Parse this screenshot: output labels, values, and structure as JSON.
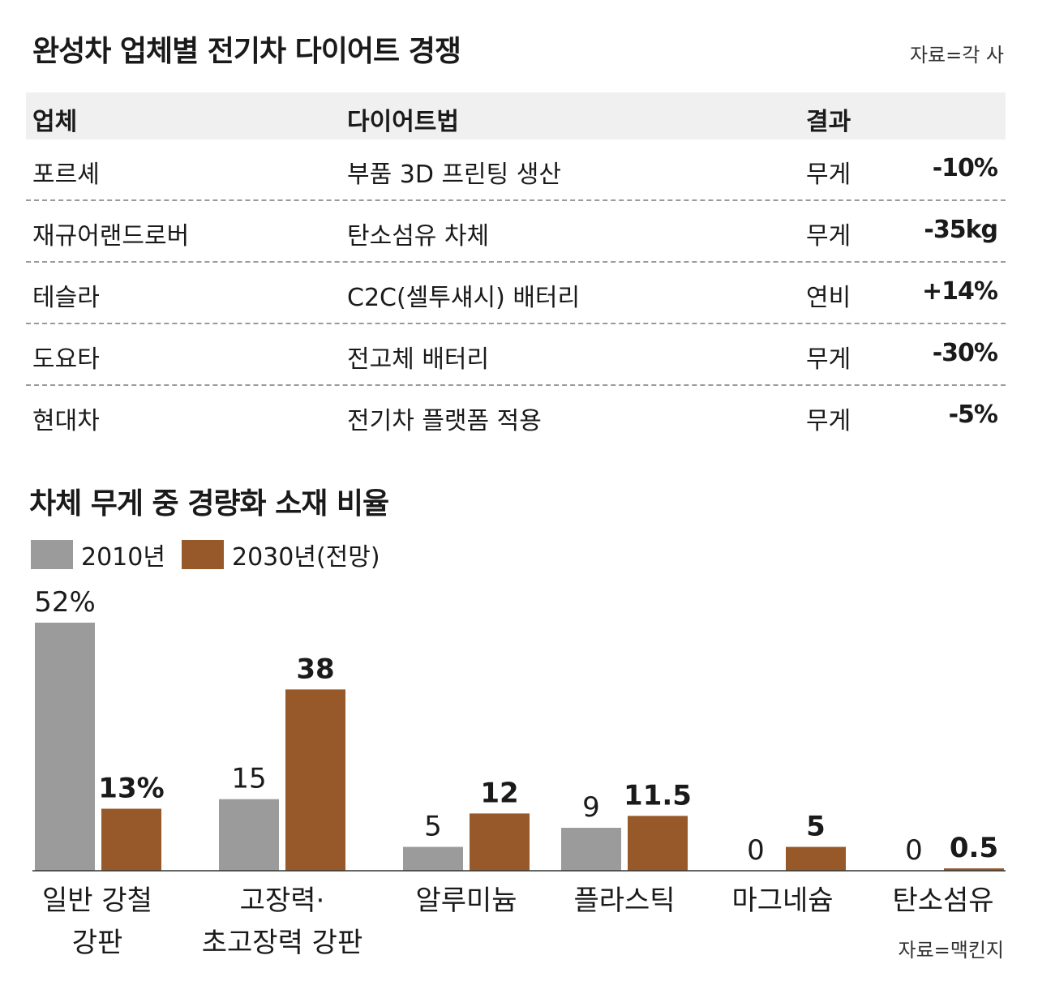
{
  "title": "완성차 업체별 전기차 다이어트 경쟁",
  "source_top": "자료=각 사",
  "table": {
    "headers": [
      "업체",
      "다이어트법",
      "결과"
    ],
    "rows": [
      {
        "company": "포르셰",
        "method": "부품 3D 프린팅 생산",
        "metric": "무게",
        "value": "-10%"
      },
      {
        "company": "재규어랜드로버",
        "method": "탄소섬유 차체",
        "metric": "무게",
        "value": "-35kg"
      },
      {
        "company": "테슬라",
        "method": "C2C(셀투섀시) 배터리",
        "metric": "연비",
        "value": "+14%"
      },
      {
        "company": "도요타",
        "method": "전고체 배터리",
        "metric": "무게",
        "value": "-30%"
      },
      {
        "company": "현대차",
        "method": "전기차 플랫폼 적용",
        "metric": "무게",
        "value": "-5%"
      }
    ]
  },
  "chart_data": {
    "type": "bar",
    "title": "차체 무게 중 경량화 소재 비율",
    "categories": [
      "일반 강철\n강판",
      "고장력·\n초고장력 강판",
      "알루미늄",
      "플라스틱",
      "마그네슘",
      "탄소섬유"
    ],
    "series": [
      {
        "name": "2010년",
        "values": [
          52,
          15,
          5,
          9,
          0,
          0
        ],
        "labels": [
          "52%",
          "15",
          "5",
          "9",
          "0",
          "0"
        ],
        "color": "#9b9b9b"
      },
      {
        "name": "2030년(전망)",
        "values": [
          13,
          38,
          12,
          11.5,
          5,
          0.5
        ],
        "labels": [
          "13%",
          "38",
          "12",
          "11.5",
          "5",
          "0.5"
        ],
        "color": "#97592a"
      }
    ],
    "ylim": [
      0,
      52
    ],
    "grid": false,
    "legend": "top-left"
  },
  "source_bottom": "자료=맥킨지"
}
